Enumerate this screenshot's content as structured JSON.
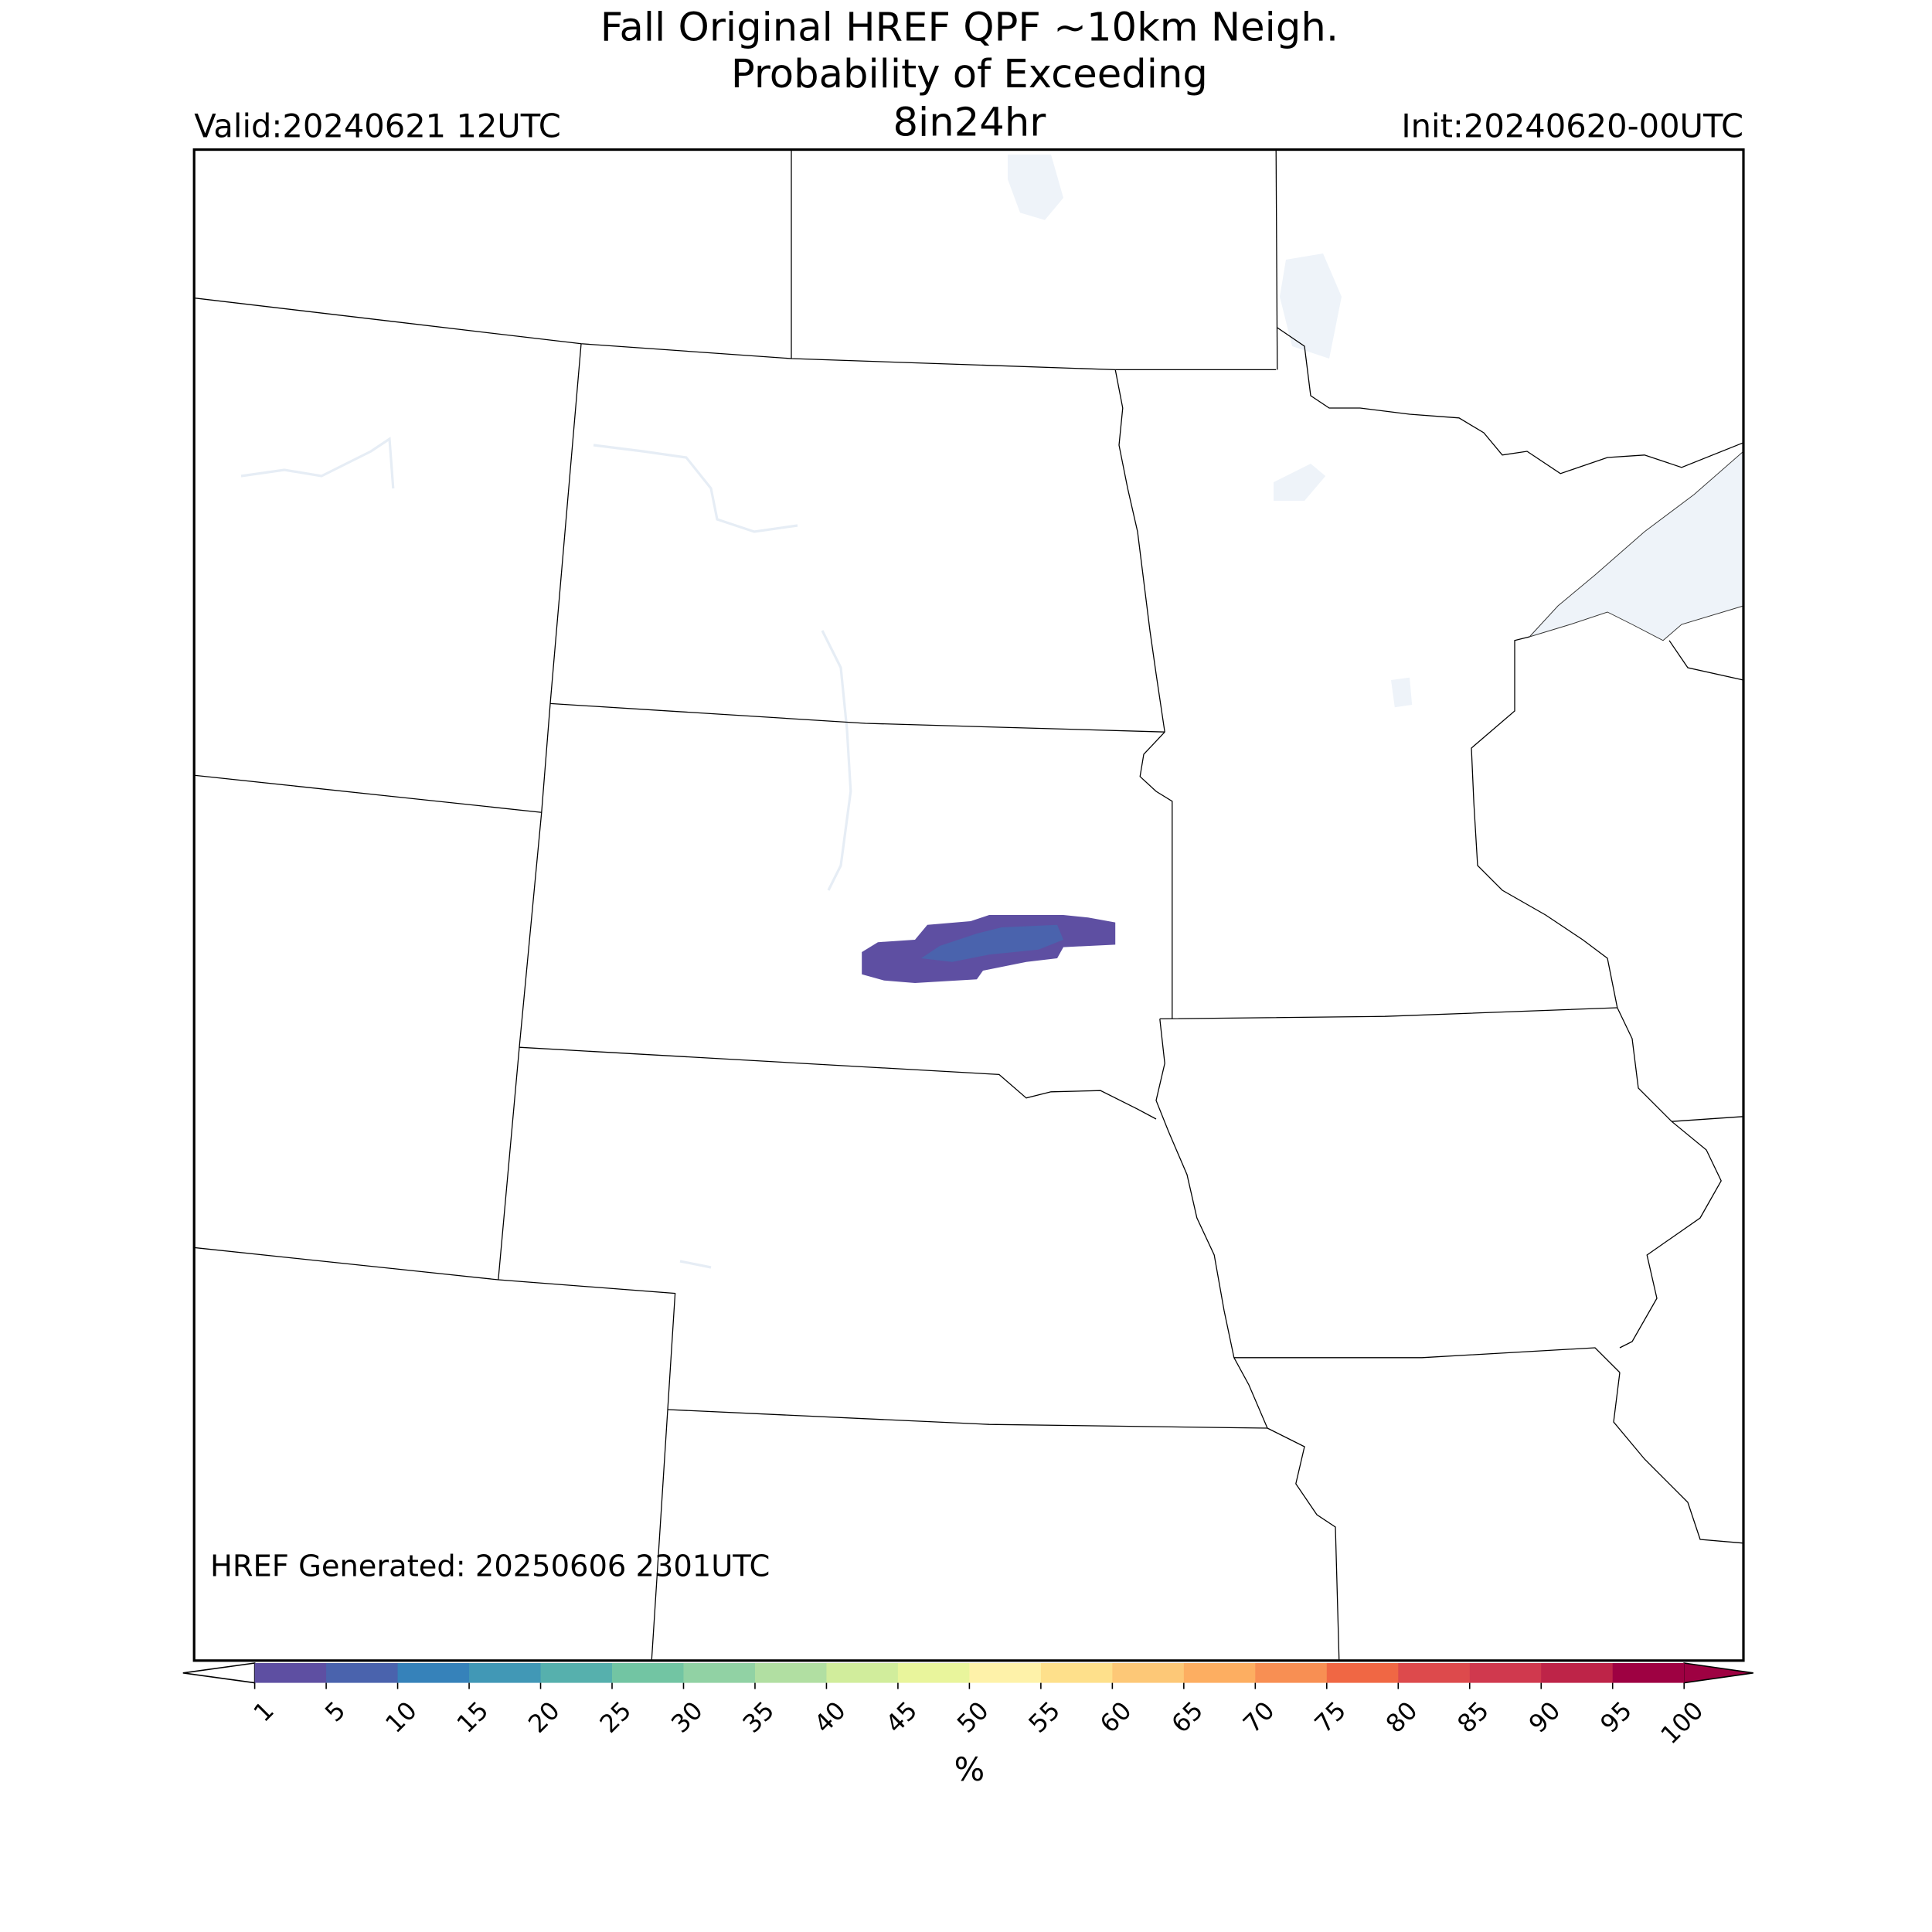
{
  "header": {
    "title_lines": [
      "Fall Original HREF QPF ~10km Neigh.",
      "Probability of Exceeding",
      "8in24hr"
    ],
    "valid": "Valid:20240621 12UTC",
    "init": "Init:20240620-00UTC"
  },
  "footer": {
    "generated": "HREF Generated: 20250606 2301UTC"
  },
  "colorbar": {
    "label": "%",
    "ticks": [
      1,
      5,
      10,
      15,
      20,
      25,
      30,
      35,
      40,
      45,
      50,
      55,
      60,
      65,
      70,
      75,
      80,
      85,
      90,
      95,
      100
    ],
    "colors": [
      "#5e4fa2",
      "#4a63ad",
      "#3682ba",
      "#4198b6",
      "#56b0ad",
      "#72c5a3",
      "#91d2a4",
      "#b1dfa2",
      "#d1ed9c",
      "#e9f59c",
      "#fef2a9",
      "#fee08b",
      "#fdc877",
      "#fdae61",
      "#f88f53",
      "#f06744",
      "#dd4a4c",
      "#d0394e",
      "#be2448",
      "#9e0142"
    ],
    "under_color": "#ffffff",
    "over_color": "#9e0142"
  }
}
